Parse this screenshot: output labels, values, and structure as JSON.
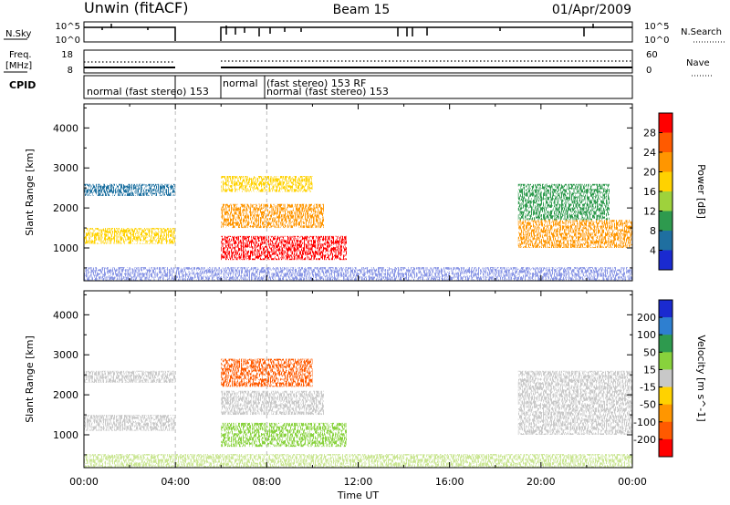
{
  "header": {
    "station": "Unwin (fitACF)",
    "beam": "Beam 15",
    "date": "01/Apr/2009"
  },
  "panels": {
    "nsky": {
      "label": "N.Sky",
      "right_label": "N.Search",
      "left_ticks": [
        "10^5",
        "10^0"
      ],
      "right_ticks": [
        "10^5",
        "10^0"
      ]
    },
    "freq": {
      "label_line1": "Freq.",
      "label_line2": "[MHz]",
      "right_label": "Nave",
      "left_ticks": [
        "18",
        "8"
      ],
      "right_ticks": [
        "60",
        "0"
      ]
    },
    "cpid": {
      "label": "CPID",
      "modes": [
        "normal (fast stereo) 153",
        "normal",
        "(fast stereo)  153 RF",
        "normal (fast stereo) 153"
      ]
    }
  },
  "chart_data": [
    {
      "type": "heatmap",
      "title": "Power",
      "ylabel": "Slant Range [km]",
      "ylim": [
        180,
        4600
      ],
      "yticks": [
        "4000",
        "3000",
        "2000",
        "1000"
      ],
      "x_start_hour": 0,
      "x_end_hour": 24,
      "data_gap_hours": [
        4.0,
        6.0
      ],
      "colorbar": {
        "label": "Power [dB]",
        "ticks": [
          "28",
          "24",
          "20",
          "16",
          "12",
          "8",
          "4"
        ],
        "colors": [
          "#ff0000",
          "#ff5a00",
          "#ff9600",
          "#ffd200",
          "#9ed23c",
          "#2e9a4e",
          "#1f6fa0",
          "#1a2ad0"
        ]
      },
      "echo_bands": [
        {
          "region": "00:00-04:00",
          "range_km": [
            1100,
            1500
          ],
          "power_db": 16
        },
        {
          "region": "00:00-04:00",
          "range_km": [
            2300,
            2600
          ],
          "power_db": 6
        },
        {
          "region": "06:00-11:30",
          "range_km": [
            700,
            1300
          ],
          "power_db": 28
        },
        {
          "region": "06:00-10:30",
          "range_km": [
            1500,
            2100
          ],
          "power_db": 20
        },
        {
          "region": "06:00-10:00",
          "range_km": [
            2400,
            2800
          ],
          "power_db": 18
        },
        {
          "region": "19:00-24:00",
          "range_km": [
            1000,
            1700
          ],
          "power_db": 20
        },
        {
          "region": "19:00-23:00",
          "range_km": [
            1700,
            2600
          ],
          "power_db": 8
        }
      ]
    },
    {
      "type": "heatmap",
      "title": "Velocity",
      "ylabel": "Slant Range [km]",
      "xlabel": "Time UT",
      "ylim": [
        180,
        4600
      ],
      "yticks": [
        "4000",
        "3000",
        "2000",
        "1000"
      ],
      "xticks": [
        "00:00",
        "04:00",
        "08:00",
        "12:00",
        "16:00",
        "20:00",
        "00:00"
      ],
      "colorbar": {
        "label": "Velocity [m s^-1]",
        "ticks": [
          "200",
          "100",
          "50",
          "15",
          "-15",
          "-50",
          "-100",
          "-200"
        ],
        "colors": [
          "#1a2ad0",
          "#2e7fd0",
          "#2e9a4e",
          "#88d23c",
          "#c8c8c8",
          "#ffd200",
          "#ff9600",
          "#ff5a00",
          "#ff0000"
        ]
      },
      "echo_bands": [
        {
          "region": "00:00-04:00",
          "range_km": [
            1100,
            1500
          ],
          "velocity": 0
        },
        {
          "region": "00:00-04:00",
          "range_km": [
            2300,
            2600
          ],
          "velocity": 0
        },
        {
          "region": "06:00-10:00",
          "range_km": [
            2200,
            2900
          ],
          "velocity": -150
        },
        {
          "region": "06:00-11:30",
          "range_km": [
            700,
            1300
          ],
          "velocity": 40
        },
        {
          "region": "06:00-10:30",
          "range_km": [
            1500,
            2100
          ],
          "velocity": 0
        },
        {
          "region": "19:00-24:00",
          "range_km": [
            1000,
            2600
          ],
          "velocity": 0
        }
      ]
    }
  ]
}
